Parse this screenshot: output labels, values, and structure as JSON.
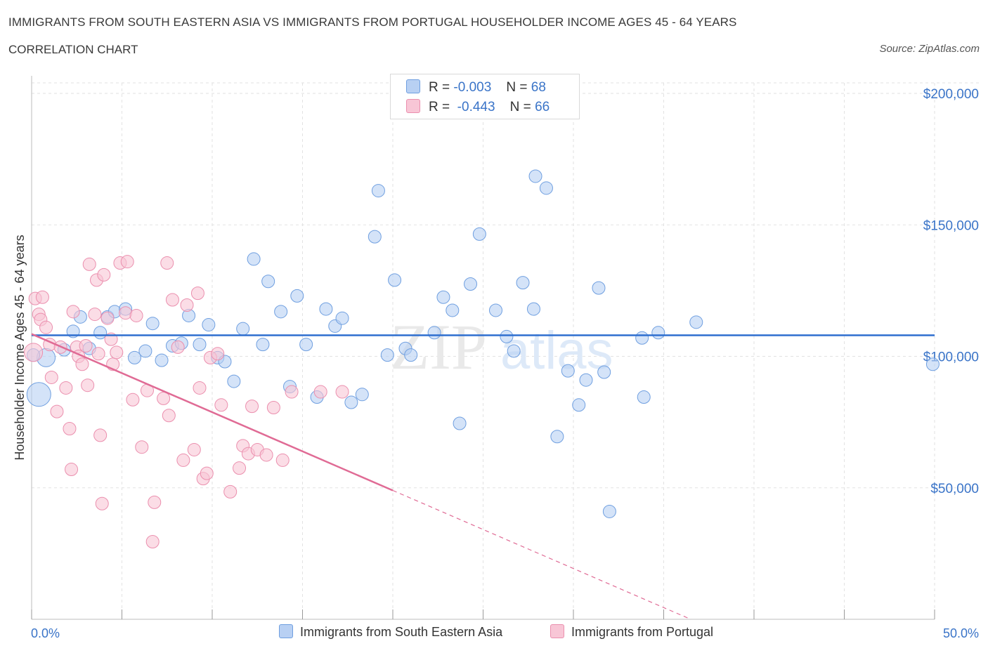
{
  "title": "IMMIGRANTS FROM SOUTH EASTERN ASIA VS IMMIGRANTS FROM PORTUGAL HOUSEHOLDER INCOME AGES 45 - 64 YEARS",
  "subtitle": "CORRELATION CHART",
  "source": "Source: ZipAtlas.com",
  "watermark": {
    "zip": "ZIP",
    "atlas": "atlas"
  },
  "legend": {
    "rows": [
      {
        "r_label": "R =",
        "r_value": "-0.003",
        "n_label": "N =",
        "n_value": "68"
      },
      {
        "r_label": "R =",
        "r_value": "-0.443",
        "n_label": "N =",
        "n_value": "66"
      }
    ]
  },
  "colors": {
    "blue_fill": "#b8d0f3",
    "blue_stroke": "#6f9fe0",
    "blue_line": "#2f6fcf",
    "pink_fill": "#f8c6d6",
    "pink_stroke": "#eb8fae",
    "pink_line": "#e06b95",
    "axis_text": "#3a74c8",
    "grid": "#e2e2e2"
  },
  "chart_data": {
    "type": "scatter",
    "title": "IMMIGRANTS FROM SOUTH EASTERN ASIA VS IMMIGRANTS FROM PORTUGAL HOUSEHOLDER INCOME AGES 45 - 64 YEARS",
    "xlabel": "",
    "ylabel": "Householder Income Ages 45 - 64 years",
    "xlim": [
      0,
      50
    ],
    "ylim": [
      0,
      200000
    ],
    "x_tick_labels": [
      "0.0%",
      "50.0%"
    ],
    "y_ticks": [
      50000,
      100000,
      150000,
      200000
    ],
    "y_tick_labels": [
      "$50,000",
      "$100,000",
      "$150,000",
      "$200,000"
    ],
    "grid": true,
    "legend_position": "top-center",
    "series": [
      {
        "name": "Immigrants from South Eastern Asia",
        "color": "#6f9fe0",
        "trend": {
          "x": [
            0,
            50
          ],
          "y": [
            108000,
            108000
          ],
          "style": "solid"
        },
        "points": [
          [
            0.4,
            85500,
            3
          ],
          [
            0.8,
            99500,
            2
          ],
          [
            1.8,
            102500,
            1
          ],
          [
            2.3,
            109500,
            1
          ],
          [
            2.7,
            115000,
            1
          ],
          [
            3.2,
            103000,
            1
          ],
          [
            3.8,
            109000,
            1
          ],
          [
            4.2,
            115000,
            1
          ],
          [
            4.6,
            117000,
            1
          ],
          [
            5.2,
            118000,
            1
          ],
          [
            5.7,
            99500,
            1
          ],
          [
            6.3,
            102000,
            1
          ],
          [
            6.7,
            112500,
            1
          ],
          [
            7.2,
            98500,
            1
          ],
          [
            7.8,
            104000,
            1
          ],
          [
            8.3,
            105000,
            1
          ],
          [
            8.7,
            115500,
            1
          ],
          [
            9.3,
            104500,
            1
          ],
          [
            9.8,
            112000,
            1
          ],
          [
            10.3,
            99500,
            1
          ],
          [
            10.7,
            98000,
            1
          ],
          [
            11.2,
            90500,
            1
          ],
          [
            11.7,
            110500,
            1
          ],
          [
            12.3,
            137000,
            1
          ],
          [
            12.8,
            104500,
            1
          ],
          [
            13.1,
            128500,
            1
          ],
          [
            13.8,
            117000,
            1
          ],
          [
            14.3,
            88500,
            1
          ],
          [
            14.7,
            123000,
            1
          ],
          [
            15.2,
            104500,
            1
          ],
          [
            15.8,
            84500,
            1
          ],
          [
            16.3,
            118000,
            1
          ],
          [
            16.8,
            111500,
            1
          ],
          [
            17.2,
            114500,
            1
          ],
          [
            17.7,
            82500,
            1
          ],
          [
            18.3,
            85500,
            1
          ],
          [
            19.0,
            145500,
            1
          ],
          [
            19.2,
            163000,
            1
          ],
          [
            19.7,
            100500,
            1
          ],
          [
            20.1,
            129000,
            1
          ],
          [
            20.7,
            103000,
            1
          ],
          [
            21.0,
            100500,
            1
          ],
          [
            22.3,
            109000,
            1
          ],
          [
            22.8,
            122500,
            1
          ],
          [
            23.3,
            117500,
            1
          ],
          [
            23.7,
            74500,
            1
          ],
          [
            24.3,
            127500,
            1
          ],
          [
            24.8,
            146500,
            1
          ],
          [
            25.7,
            117500,
            1
          ],
          [
            26.3,
            107500,
            1
          ],
          [
            26.7,
            102000,
            1
          ],
          [
            27.2,
            128000,
            1
          ],
          [
            27.8,
            118000,
            1
          ],
          [
            27.9,
            168500,
            1
          ],
          [
            28.5,
            164000,
            1
          ],
          [
            29.1,
            69500,
            1
          ],
          [
            29.7,
            94500,
            1
          ],
          [
            30.3,
            81500,
            1
          ],
          [
            30.7,
            91000,
            1
          ],
          [
            31.4,
            126000,
            1
          ],
          [
            31.7,
            94000,
            1
          ],
          [
            32.0,
            41000,
            1
          ],
          [
            33.8,
            107000,
            1
          ],
          [
            33.9,
            84500,
            1
          ],
          [
            34.7,
            109000,
            1
          ],
          [
            36.8,
            113000,
            1
          ],
          [
            49.9,
            97000,
            1
          ],
          [
            0.1,
            100500,
            1
          ]
        ]
      },
      {
        "name": "Immigrants from Portugal",
        "color": "#eb8fae",
        "trend": {
          "x": [
            0,
            20
          ],
          "y": [
            108500,
            49000
          ],
          "dashed_to": [
            36.5,
            0
          ],
          "style": "solid-then-dashed"
        },
        "points": [
          [
            0.2,
            122000,
            1
          ],
          [
            0.4,
            116000,
            1
          ],
          [
            0.5,
            114000,
            1
          ],
          [
            0.6,
            122500,
            1
          ],
          [
            0.8,
            111000,
            1
          ],
          [
            1.0,
            104500,
            1
          ],
          [
            1.1,
            92000,
            1
          ],
          [
            1.4,
            79000,
            1
          ],
          [
            1.6,
            103500,
            1
          ],
          [
            1.9,
            88000,
            1
          ],
          [
            2.1,
            72500,
            1
          ],
          [
            2.2,
            57000,
            1
          ],
          [
            2.3,
            117000,
            1
          ],
          [
            2.5,
            103500,
            1
          ],
          [
            2.6,
            100000,
            1
          ],
          [
            2.8,
            97000,
            1
          ],
          [
            3.0,
            104000,
            1
          ],
          [
            3.1,
            89000,
            1
          ],
          [
            3.2,
            135000,
            1
          ],
          [
            3.5,
            116000,
            1
          ],
          [
            3.6,
            129000,
            1
          ],
          [
            3.7,
            101000,
            1
          ],
          [
            3.8,
            70000,
            1
          ],
          [
            3.9,
            44000,
            1
          ],
          [
            4.0,
            131000,
            1
          ],
          [
            4.2,
            114500,
            1
          ],
          [
            4.4,
            106500,
            1
          ],
          [
            4.5,
            97000,
            1
          ],
          [
            4.7,
            101500,
            1
          ],
          [
            4.9,
            135500,
            1
          ],
          [
            5.2,
            116500,
            1
          ],
          [
            5.3,
            136000,
            1
          ],
          [
            5.6,
            83500,
            1
          ],
          [
            5.8,
            115500,
            1
          ],
          [
            6.1,
            65500,
            1
          ],
          [
            6.4,
            87000,
            1
          ],
          [
            6.7,
            29500,
            1
          ],
          [
            6.8,
            44500,
            1
          ],
          [
            7.3,
            84000,
            1
          ],
          [
            7.5,
            135500,
            1
          ],
          [
            7.6,
            77500,
            1
          ],
          [
            7.8,
            121500,
            1
          ],
          [
            8.1,
            103500,
            1
          ],
          [
            8.4,
            60500,
            1
          ],
          [
            8.6,
            119500,
            1
          ],
          [
            9.0,
            64500,
            1
          ],
          [
            9.2,
            124000,
            1
          ],
          [
            9.3,
            88000,
            1
          ],
          [
            9.5,
            53500,
            1
          ],
          [
            9.7,
            55500,
            1
          ],
          [
            9.9,
            99500,
            1
          ],
          [
            10.3,
            101000,
            1
          ],
          [
            10.5,
            81500,
            1
          ],
          [
            11.0,
            48500,
            1
          ],
          [
            11.5,
            57500,
            1
          ],
          [
            11.7,
            66000,
            1
          ],
          [
            12.0,
            63000,
            1
          ],
          [
            12.2,
            81000,
            1
          ],
          [
            12.5,
            64500,
            1
          ],
          [
            13.0,
            62500,
            1
          ],
          [
            13.4,
            80500,
            1
          ],
          [
            13.9,
            60500,
            1
          ],
          [
            14.4,
            86500,
            1
          ],
          [
            16.0,
            86500,
            1
          ],
          [
            17.2,
            86500,
            1
          ],
          [
            0.1,
            101500,
            2
          ]
        ]
      }
    ]
  },
  "bottom_legend": [
    "Immigrants from South Eastern Asia",
    "Immigrants from Portugal"
  ]
}
